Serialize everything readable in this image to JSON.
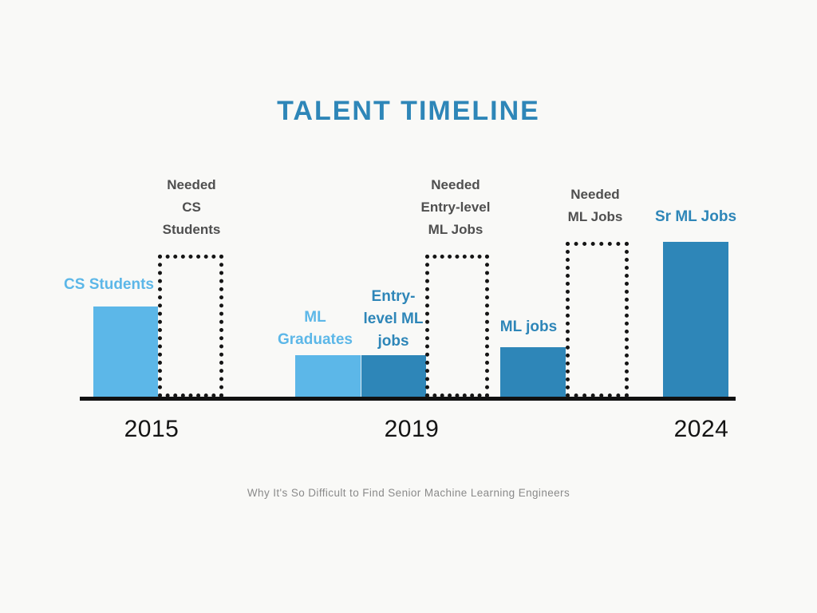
{
  "page": {
    "background": "#F9F9F7"
  },
  "chart_data": {
    "type": "bar",
    "title": "TALENT TIMELINE",
    "caption": "Why It's So Difficult to Find Senior Machine Learning Engineers",
    "x_categories": [
      "2015",
      "2019",
      "2024"
    ],
    "ylim": [
      0,
      100
    ],
    "value_unit": "relative height (tallest bar = 100)",
    "grid": false,
    "legend_position": "none",
    "colors": {
      "light_blue": "#5CB7E8",
      "dark_blue": "#2E86B8",
      "outline_black": "#151515",
      "needed_label_gray": "#4F4F4F",
      "title_blue": "#2E86B8",
      "background": "#F9F9F7"
    },
    "bars": [
      {
        "label": "CS Students",
        "label_lines": [
          "CS Students"
        ],
        "year": "2015",
        "value": 59,
        "style": "solid",
        "color": "#5CB7E8"
      },
      {
        "label": "Needed CS Students",
        "label_lines": [
          "Needed",
          "CS",
          "Students"
        ],
        "year": "2015",
        "value": 91,
        "style": "dotted-outline",
        "color": "#151515"
      },
      {
        "label": "ML Graduates",
        "label_lines": [
          "ML",
          "Graduates"
        ],
        "year": "2019",
        "value": 28,
        "style": "solid",
        "color": "#5CB7E8"
      },
      {
        "label": "Entry-level ML jobs",
        "label_lines": [
          "Entry-",
          "level ML",
          "jobs"
        ],
        "year": "2019",
        "value": 28,
        "style": "solid",
        "color": "#2E86B8"
      },
      {
        "label": "Needed Entry-level ML Jobs",
        "label_lines": [
          "Needed",
          "Entry-level",
          "ML Jobs"
        ],
        "year": "2019",
        "value": 91,
        "style": "dotted-outline",
        "color": "#151515"
      },
      {
        "label": "ML jobs",
        "label_lines": [
          "ML jobs"
        ],
        "year": "2024",
        "value": 33,
        "style": "solid",
        "color": "#2E86B8"
      },
      {
        "label": "Needed ML Jobs",
        "label_lines": [
          "Needed",
          "ML Jobs"
        ],
        "year": "2024",
        "value": 99,
        "style": "dotted-outline",
        "color": "#151515"
      },
      {
        "label": "Sr ML Jobs",
        "label_lines": [
          "Sr ML Jobs"
        ],
        "year": "2024",
        "value": 100,
        "style": "solid",
        "color": "#2E86B8"
      }
    ]
  }
}
